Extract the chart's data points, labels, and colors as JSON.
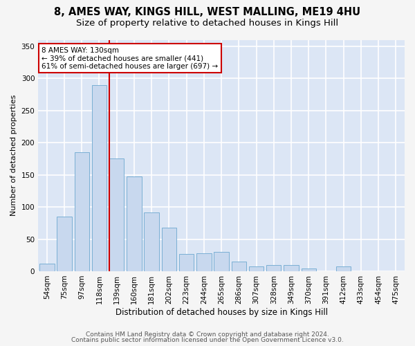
{
  "title1": "8, AMES WAY, KINGS HILL, WEST MALLING, ME19 4HU",
  "title2": "Size of property relative to detached houses in Kings Hill",
  "xlabel": "Distribution of detached houses by size in Kings Hill",
  "ylabel": "Number of detached properties",
  "categories": [
    "54sqm",
    "75sqm",
    "97sqm",
    "118sqm",
    "139sqm",
    "160sqm",
    "181sqm",
    "202sqm",
    "223sqm",
    "244sqm",
    "265sqm",
    "286sqm",
    "307sqm",
    "328sqm",
    "349sqm",
    "370sqm",
    "391sqm",
    "412sqm",
    "433sqm",
    "454sqm",
    "475sqm"
  ],
  "values": [
    12,
    85,
    185,
    290,
    175,
    147,
    91,
    68,
    27,
    28,
    30,
    15,
    8,
    10,
    10,
    4,
    0,
    7,
    0,
    0,
    0
  ],
  "bar_color": "#c8d8ee",
  "bar_edge_color": "#7aafd4",
  "plot_bg_color": "#dce6f5",
  "fig_bg_color": "#f5f5f5",
  "grid_color": "#ffffff",
  "vline_x_index": 3.57,
  "vline_color": "#cc0000",
  "annotation_text": "8 AMES WAY: 130sqm\n← 39% of detached houses are smaller (441)\n61% of semi-detached houses are larger (697) →",
  "annotation_box_color": "#ffffff",
  "annotation_box_edge": "#cc0000",
  "ylim": [
    0,
    360
  ],
  "yticks": [
    0,
    50,
    100,
    150,
    200,
    250,
    300,
    350
  ],
  "footer1": "Contains HM Land Registry data © Crown copyright and database right 2024.",
  "footer2": "Contains public sector information licensed under the Open Government Licence v3.0.",
  "title1_fontsize": 10.5,
  "title2_fontsize": 9.5,
  "xlabel_fontsize": 8.5,
  "ylabel_fontsize": 8,
  "tick_fontsize": 7.5,
  "annot_fontsize": 7.5,
  "footer_fontsize": 6.5
}
